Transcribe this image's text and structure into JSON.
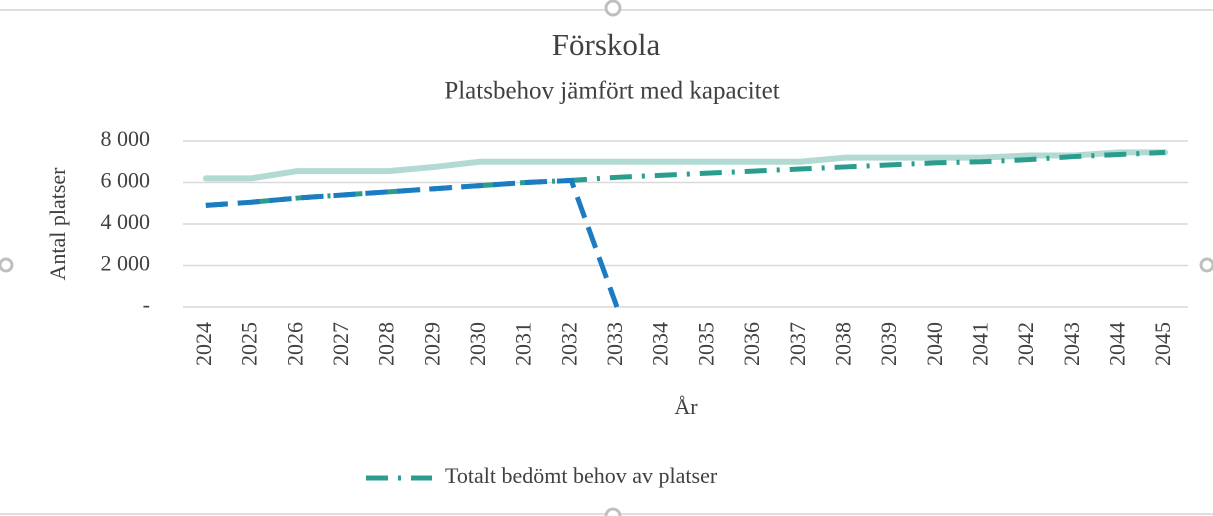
{
  "chart_data": {
    "type": "line",
    "title": "Förskola",
    "subtitle": "Platsbehov jämfört med kapacitet",
    "y_label": "Antal platser",
    "x_label": "År",
    "categories": [
      "2024",
      "2025",
      "2026",
      "2027",
      "2028",
      "2029",
      "2030",
      "2031",
      "2032",
      "2033",
      "2034",
      "2035",
      "2036",
      "2037",
      "2038",
      "2039",
      "2040",
      "2041",
      "2042",
      "2043",
      "2044",
      "2045"
    ],
    "series": [
      {
        "color": "#b2dad2",
        "style": "solid",
        "values": [
          6200,
          6200,
          6550,
          6550,
          6550,
          6750,
          7000,
          7000,
          7000,
          7000,
          7000,
          7000,
          7000,
          7000,
          7200,
          7200,
          7200,
          7200,
          7300,
          7300,
          7450,
          7450
        ]
      },
      {
        "name": "Totalt bedömt behov av platser",
        "color": "#2a9d8f",
        "style": "dashdot",
        "values": [
          4900,
          5050,
          5250,
          5400,
          5550,
          5700,
          5850,
          6000,
          6100,
          6250,
          6350,
          6450,
          6550,
          6650,
          6750,
          6850,
          6950,
          7000,
          7100,
          7250,
          7350,
          7450
        ]
      },
      {
        "color": "#1b7cc1",
        "style": "dash",
        "values": [
          4900,
          5050,
          5250,
          5400,
          5550,
          5700,
          5850,
          6000,
          6100,
          0,
          null,
          null,
          null,
          null,
          null,
          null,
          null,
          null,
          null,
          null,
          null,
          null
        ]
      }
    ],
    "ylim": [
      0,
      8000
    ],
    "yticks": [
      {
        "value": 0,
        "label": "-"
      },
      {
        "value": 2000,
        "label": "2 000"
      },
      {
        "value": 4000,
        "label": "4 000"
      },
      {
        "value": 6000,
        "label": "6 000"
      },
      {
        "value": 8000,
        "label": "8 000"
      }
    ],
    "grid": true,
    "legend": "bottom"
  }
}
